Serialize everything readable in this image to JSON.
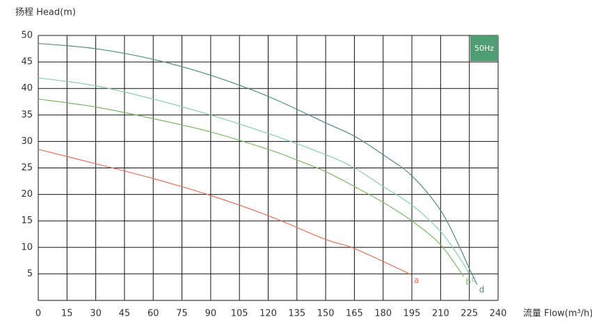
{
  "chart_data": {
    "type": "line",
    "y_label": "扬程 Head(m)",
    "x_label": "流量 Flow(m³/h)",
    "badge": "50Hz",
    "badge_color": "#4f9e73",
    "xlim": [
      0,
      240
    ],
    "xticks": [
      0,
      15,
      30,
      45,
      60,
      75,
      90,
      105,
      120,
      135,
      150,
      165,
      180,
      195,
      210,
      225,
      240
    ],
    "ylim": [
      0,
      50
    ],
    "yticks": [
      5,
      10,
      15,
      20,
      25,
      30,
      35,
      40,
      45,
      50
    ],
    "grid": true,
    "series": [
      {
        "name": "a",
        "color": "#e0735e",
        "x": [
          0,
          30,
          60,
          90,
          120,
          150,
          165,
          195
        ],
        "values": [
          28.5,
          25.8,
          23,
          19.8,
          16,
          11.5,
          9.8,
          4.8
        ]
      },
      {
        "name": "b",
        "color": "#7ab865",
        "x": [
          0,
          30,
          60,
          90,
          120,
          135,
          150,
          165,
          180,
          195,
          210,
          222
        ],
        "values": [
          38,
          36.5,
          34.3,
          31.8,
          28.5,
          26.5,
          24.3,
          21.5,
          18.5,
          15,
          10.5,
          4.5
        ]
      },
      {
        "name": "c",
        "color": "#86cfa9",
        "x": [
          0,
          30,
          60,
          90,
          120,
          150,
          165,
          180,
          195,
          210,
          220,
          225
        ],
        "values": [
          42,
          40.5,
          38,
          35,
          31.5,
          27.5,
          25,
          21.5,
          18,
          13,
          8,
          5
        ]
      },
      {
        "name": "d",
        "color": "#4e8b80",
        "x": [
          0,
          30,
          60,
          90,
          120,
          150,
          165,
          180,
          195,
          210,
          220,
          225,
          229
        ],
        "values": [
          48.5,
          47.5,
          45.5,
          42.5,
          38.5,
          33.5,
          31,
          27.5,
          23.5,
          17,
          10,
          6,
          3
        ]
      }
    ]
  }
}
